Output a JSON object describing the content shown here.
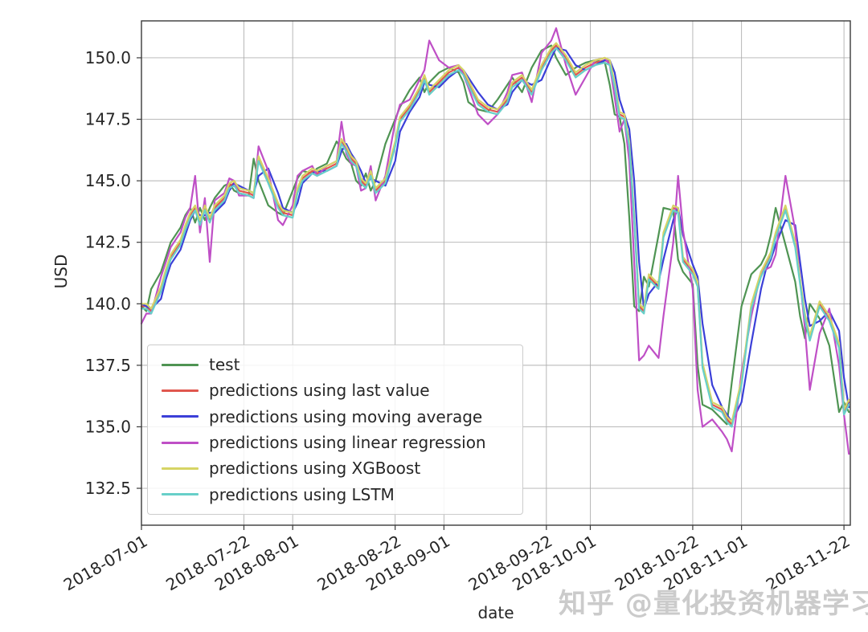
{
  "watermark": {
    "text": "知乎 @量化投资机器学习",
    "color": "#c9c9c9"
  },
  "chart_data": {
    "type": "line",
    "title": "",
    "xlabel": "date",
    "ylabel": "USD",
    "x_unit": "days since 2018-07-01",
    "xlim": [
      0,
      145.3
    ],
    "ylim": [
      131.0,
      151.5
    ],
    "grid": true,
    "legend_position": "lower left",
    "y_ticks": [
      132.5,
      135.0,
      137.5,
      140.0,
      142.5,
      145.0,
      147.5,
      150.0
    ],
    "x_ticks": [
      {
        "label": "2018-07-01",
        "day": 0
      },
      {
        "label": "2018-07-22",
        "day": 21
      },
      {
        "label": "2018-08-01",
        "day": 31
      },
      {
        "label": "2018-08-22",
        "day": 52
      },
      {
        "label": "2018-09-01",
        "day": 62
      },
      {
        "label": "2018-09-22",
        "day": 83
      },
      {
        "label": "2018-10-01",
        "day": 92
      },
      {
        "label": "2018-10-22",
        "day": 113
      },
      {
        "label": "2018-11-01",
        "day": 123
      },
      {
        "label": "2018-11-22",
        "day": 144
      }
    ],
    "days": [
      0,
      1,
      2,
      4,
      5,
      6,
      8,
      9,
      10,
      11,
      12,
      13,
      14,
      15,
      17,
      18,
      19,
      20,
      22,
      23,
      24,
      26,
      28,
      29,
      31,
      32,
      33,
      35,
      36,
      38,
      40,
      41,
      42,
      43,
      44,
      45,
      46,
      47,
      48,
      50,
      52,
      53,
      55,
      57,
      58,
      59,
      61,
      63,
      65,
      66,
      67,
      69,
      71,
      73,
      75,
      76,
      78,
      80,
      82,
      84,
      85,
      87,
      89,
      91,
      93,
      95,
      96,
      97,
      98,
      99,
      100,
      101,
      102,
      103,
      104,
      106,
      107,
      109,
      110,
      111,
      113,
      114,
      115,
      117,
      119,
      120,
      121,
      123,
      125,
      127,
      128,
      129,
      130,
      132,
      134,
      135,
      136,
      137,
      139,
      141,
      143,
      144,
      145
    ],
    "series": [
      {
        "name": "test",
        "color": "#4f9453",
        "values": [
          139.9,
          139.7,
          140.6,
          141.3,
          141.9,
          142.5,
          143.1,
          143.6,
          143.9,
          143.3,
          143.9,
          143.4,
          143.9,
          144.3,
          144.8,
          144.9,
          144.6,
          144.5,
          144.4,
          145.9,
          145.0,
          144.0,
          143.7,
          143.6,
          144.6,
          145.1,
          145.4,
          145.3,
          145.5,
          145.7,
          146.6,
          146.3,
          145.9,
          145.7,
          145.0,
          144.8,
          145.3,
          144.6,
          145.0,
          146.5,
          147.5,
          148.0,
          148.7,
          149.2,
          148.6,
          149.0,
          149.4,
          149.6,
          149.4,
          149.0,
          148.2,
          147.9,
          147.8,
          148.3,
          148.9,
          149.2,
          148.6,
          149.6,
          150.3,
          150.5,
          150.0,
          149.3,
          149.6,
          149.8,
          149.9,
          149.8,
          148.9,
          147.7,
          147.6,
          146.5,
          143.5,
          139.9,
          139.7,
          141.1,
          140.7,
          142.8,
          143.9,
          143.8,
          141.8,
          141.3,
          140.8,
          137.5,
          135.9,
          135.7,
          135.3,
          135.1,
          136.8,
          139.9,
          141.2,
          141.6,
          142.0,
          142.8,
          143.9,
          142.4,
          140.9,
          139.5,
          138.6,
          140.0,
          139.4,
          138.3,
          135.6,
          136.0,
          135.6
        ]
      },
      {
        "name": "predictions using last value",
        "color": "#e0574e",
        "values": [
          139.9,
          139.9,
          139.7,
          140.6,
          141.3,
          141.9,
          142.5,
          143.1,
          143.6,
          143.9,
          143.3,
          143.9,
          143.4,
          143.9,
          144.3,
          144.8,
          144.9,
          144.6,
          144.5,
          144.4,
          145.9,
          145.0,
          144.0,
          143.7,
          143.6,
          144.6,
          145.1,
          145.4,
          145.3,
          145.5,
          145.7,
          146.6,
          146.3,
          145.9,
          145.7,
          145.0,
          144.8,
          145.3,
          144.6,
          145.0,
          146.5,
          147.5,
          148.0,
          148.7,
          149.2,
          148.6,
          149.0,
          149.4,
          149.6,
          149.4,
          149.0,
          148.2,
          147.9,
          147.8,
          148.3,
          148.9,
          149.2,
          148.6,
          149.6,
          150.3,
          150.5,
          150.0,
          149.3,
          149.6,
          149.8,
          149.9,
          149.8,
          148.9,
          147.7,
          147.6,
          146.5,
          143.5,
          139.9,
          139.7,
          141.1,
          140.7,
          142.8,
          143.9,
          143.8,
          141.8,
          141.3,
          140.8,
          137.5,
          135.9,
          135.7,
          135.3,
          135.1,
          136.8,
          139.9,
          141.2,
          141.6,
          142.0,
          142.8,
          143.9,
          142.4,
          140.9,
          139.5,
          138.6,
          140.0,
          139.4,
          138.3,
          135.6,
          136.0
        ]
      },
      {
        "name": "predictions using moving average",
        "color": "#3b3fd8",
        "values": [
          140.0,
          139.9,
          139.8,
          140.2,
          141.0,
          141.6,
          142.2,
          142.8,
          143.4,
          143.8,
          143.6,
          143.6,
          143.7,
          143.7,
          144.1,
          144.6,
          144.9,
          144.8,
          144.6,
          144.5,
          145.2,
          145.5,
          144.5,
          143.9,
          143.7,
          144.1,
          144.9,
          145.3,
          145.4,
          145.4,
          145.6,
          146.2,
          146.5,
          146.1,
          145.8,
          145.4,
          144.9,
          145.1,
          145.0,
          144.8,
          145.8,
          147.0,
          147.8,
          148.4,
          149.0,
          148.9,
          148.8,
          149.2,
          149.5,
          149.5,
          149.2,
          148.6,
          148.1,
          147.9,
          148.1,
          148.6,
          149.1,
          148.9,
          149.1,
          150.0,
          150.4,
          150.3,
          149.7,
          149.5,
          149.7,
          149.9,
          149.9,
          149.4,
          148.3,
          147.7,
          147.1,
          145.0,
          141.7,
          139.8,
          140.4,
          140.9,
          141.8,
          143.4,
          143.9,
          142.8,
          141.6,
          141.1,
          139.2,
          136.7,
          135.8,
          135.5,
          135.2,
          136.0,
          138.4,
          140.6,
          141.4,
          141.8,
          142.4,
          143.4,
          143.2,
          141.7,
          140.2,
          139.1,
          139.3,
          139.7,
          138.9,
          137.0,
          135.8
        ]
      },
      {
        "name": "predictions using linear regression",
        "color": "#bf4fc6",
        "values": [
          139.2,
          139.6,
          139.6,
          141.1,
          141.7,
          142.3,
          142.9,
          143.5,
          143.9,
          145.2,
          142.9,
          144.3,
          141.7,
          144.2,
          144.5,
          145.1,
          145.0,
          144.4,
          144.4,
          144.3,
          146.4,
          145.4,
          143.4,
          143.2,
          144.0,
          145.2,
          145.4,
          145.6,
          145.2,
          145.6,
          145.8,
          147.4,
          146.1,
          145.7,
          145.6,
          144.6,
          144.7,
          145.6,
          144.2,
          145.2,
          147.4,
          148.1,
          148.3,
          149.1,
          149.5,
          150.7,
          149.9,
          149.6,
          149.7,
          149.3,
          148.8,
          147.7,
          147.3,
          147.7,
          148.6,
          149.3,
          149.4,
          148.2,
          150.2,
          150.7,
          151.2,
          149.7,
          148.5,
          149.2,
          149.9,
          150.0,
          149.7,
          148.4,
          147.0,
          147.5,
          145.8,
          141.7,
          137.7,
          137.9,
          138.3,
          137.8,
          139.5,
          142.5,
          145.2,
          143.0,
          140.6,
          136.5,
          135.0,
          135.3,
          134.8,
          134.5,
          134.0,
          137.2,
          139.5,
          141.3,
          141.4,
          141.5,
          142.0,
          145.2,
          143.0,
          141.0,
          139.0,
          136.5,
          138.8,
          139.8,
          137.5,
          135.5,
          133.9
        ]
      },
      {
        "name": "predictions using XGBoost",
        "color": "#d6d465",
        "values": [
          140.0,
          140.0,
          139.8,
          140.7,
          141.4,
          142.0,
          142.6,
          143.2,
          143.7,
          144.0,
          143.4,
          144.0,
          143.5,
          144.0,
          144.4,
          144.9,
          145.0,
          144.7,
          144.6,
          144.5,
          146.0,
          145.1,
          144.1,
          143.8,
          143.7,
          144.7,
          145.2,
          145.5,
          145.4,
          145.6,
          145.8,
          146.7,
          146.4,
          146.0,
          145.8,
          145.1,
          144.9,
          145.4,
          144.7,
          145.1,
          146.6,
          147.6,
          148.1,
          148.8,
          149.3,
          148.7,
          149.1,
          149.5,
          149.7,
          149.5,
          149.1,
          148.3,
          148.0,
          147.9,
          148.4,
          149.0,
          149.3,
          148.7,
          149.7,
          150.4,
          150.6,
          150.1,
          149.4,
          149.7,
          149.9,
          150.0,
          149.9,
          149.0,
          147.8,
          147.7,
          146.6,
          143.6,
          140.0,
          139.8,
          141.2,
          140.8,
          142.9,
          144.0,
          143.9,
          141.9,
          141.4,
          140.9,
          137.6,
          136.0,
          135.8,
          135.4,
          135.2,
          136.9,
          140.0,
          141.3,
          141.7,
          142.1,
          142.9,
          144.0,
          142.5,
          141.0,
          139.6,
          138.7,
          140.1,
          139.5,
          138.4,
          135.7,
          136.1
        ]
      },
      {
        "name": "predictions using LSTM",
        "color": "#67cfc9",
        "values": [
          139.8,
          139.8,
          139.6,
          140.5,
          141.2,
          141.8,
          142.4,
          143.0,
          143.5,
          143.8,
          143.2,
          143.8,
          143.3,
          143.8,
          144.2,
          144.7,
          144.8,
          144.5,
          144.4,
          144.3,
          145.8,
          144.9,
          143.9,
          143.6,
          143.5,
          144.5,
          145.0,
          145.3,
          145.2,
          145.4,
          145.6,
          146.5,
          146.2,
          145.8,
          145.6,
          144.9,
          144.7,
          145.2,
          144.5,
          144.9,
          146.4,
          147.4,
          147.9,
          148.6,
          149.1,
          148.5,
          148.9,
          149.3,
          149.5,
          149.3,
          148.9,
          148.1,
          147.8,
          147.7,
          148.2,
          148.8,
          149.1,
          148.5,
          149.5,
          150.2,
          150.4,
          149.9,
          149.2,
          149.5,
          149.7,
          149.8,
          149.7,
          148.8,
          147.6,
          147.5,
          146.4,
          143.4,
          139.8,
          139.6,
          141.0,
          140.6,
          142.7,
          143.8,
          143.7,
          141.7,
          141.2,
          140.7,
          137.4,
          135.8,
          135.6,
          135.2,
          135.0,
          136.7,
          139.8,
          141.1,
          141.5,
          141.9,
          142.7,
          143.8,
          142.3,
          140.8,
          139.4,
          138.5,
          139.9,
          139.3,
          138.2,
          135.5,
          135.9
        ]
      }
    ]
  }
}
